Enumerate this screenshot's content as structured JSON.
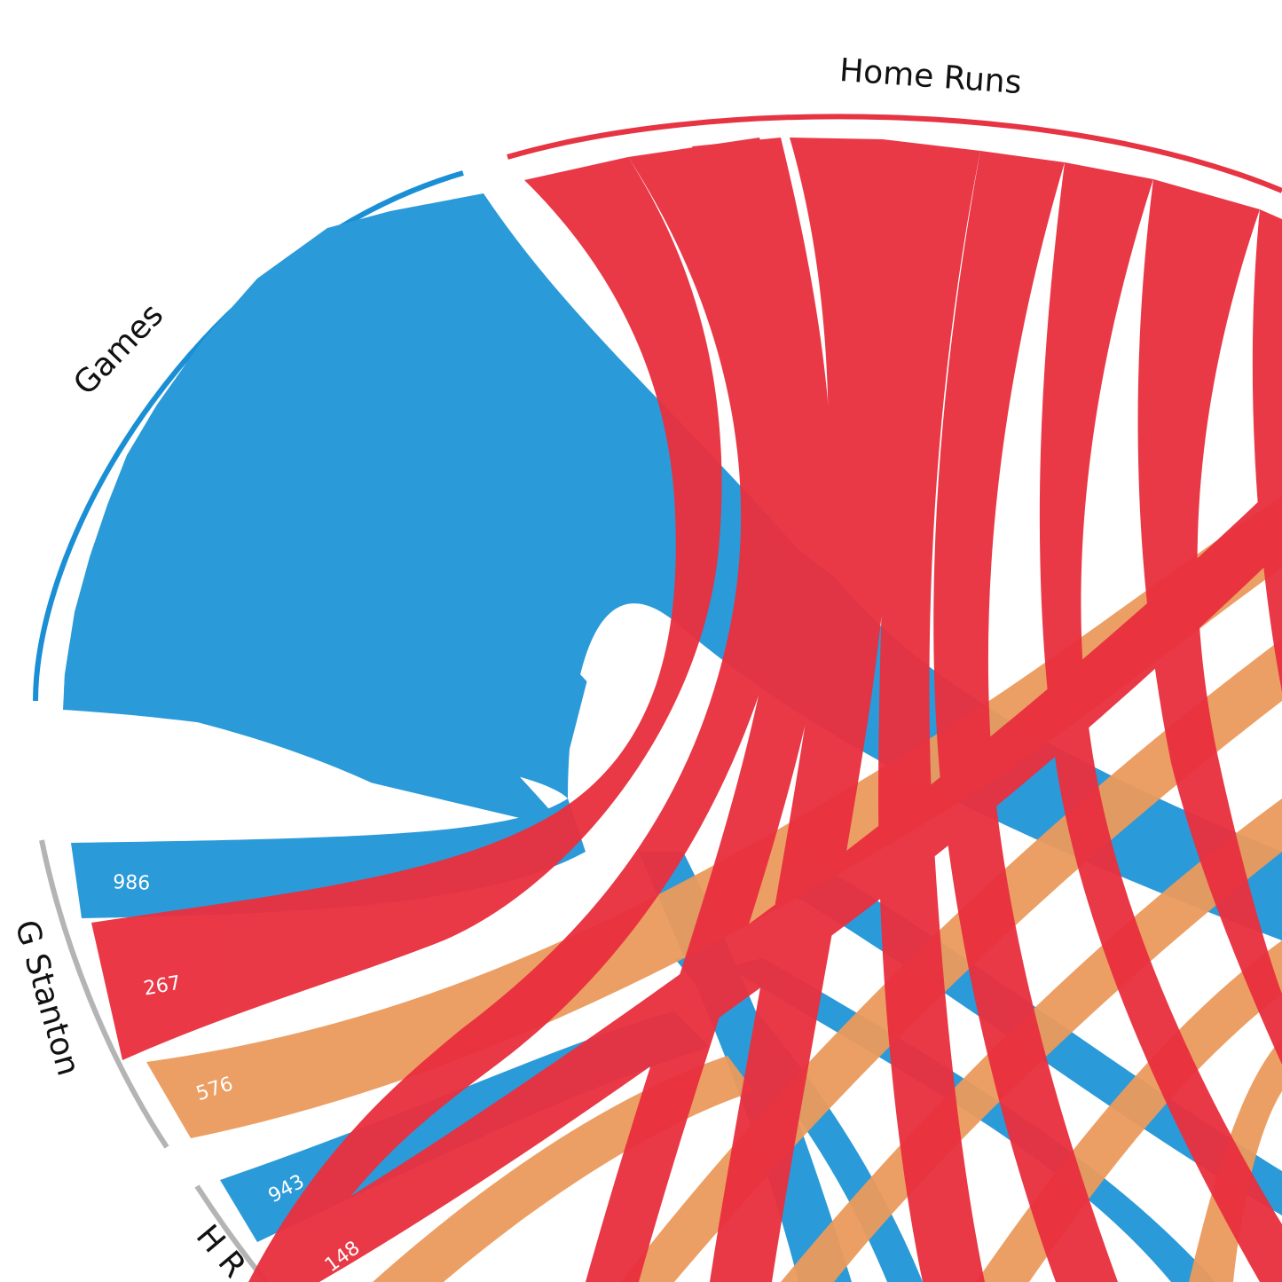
{
  "chart_data": {
    "type": "chord",
    "title": "",
    "groups": [
      {
        "name": "Games",
        "kind": "stat",
        "color": "#2b9ad9"
      },
      {
        "name": "Home Runs",
        "kind": "stat",
        "color": "#e9303f"
      },
      {
        "name": "G Stanton",
        "kind": "player",
        "color": "#b4b4b4"
      },
      {
        "name": "H R",
        "kind": "player",
        "color": "#b4b4b4"
      }
    ],
    "series_colors": {
      "games": "#2b9ad9",
      "home_runs": "#e9303f",
      "third_stat": "#eb9a5c"
    },
    "players": [
      {
        "name": "G Stanton",
        "values": [
          {
            "series": "games",
            "value": "986"
          },
          {
            "series": "home_runs",
            "value": "267"
          },
          {
            "series": "third_stat",
            "value": "576"
          }
        ]
      },
      {
        "name": "H R",
        "values": [
          {
            "series": "games",
            "value": "943"
          },
          {
            "series": "home_runs",
            "value": "148"
          }
        ]
      }
    ]
  }
}
